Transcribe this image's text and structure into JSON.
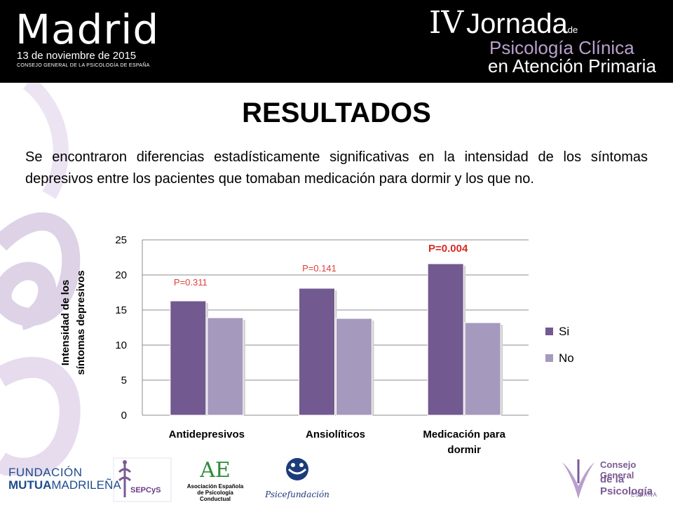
{
  "header": {
    "event_city": "Madrid",
    "event_date": "13 de noviembre de 2015",
    "event_org": "CONSEJO GENERAL DE LA PSICOLOGÍA DE ESPAÑA",
    "jornada_number": "IV",
    "jornada_word": "Jornada",
    "jornada_de": "de",
    "jornada_line2": "Psicología Clínica",
    "jornada_line3": "en Atención Primaria"
  },
  "section_title": "RESULTADOS",
  "summary": "Se encontraron diferencias estadísticamente significativas en la intensidad de los síntomas depresivos entre los pacientes que tomaban medicación para dormir y  los que no.",
  "chart_data": {
    "type": "bar",
    "categories": [
      "Antidepresivos",
      "Ansiolíticos",
      "Medicación para dormir"
    ],
    "category_lines": [
      [
        "Antidepresivos"
      ],
      [
        "Ansiolíticos"
      ],
      [
        "Medicación para",
        "dormir"
      ]
    ],
    "series": [
      {
        "name": "Si",
        "values": [
          16.3,
          18.1,
          21.6
        ],
        "color": "#725990"
      },
      {
        "name": "No",
        "values": [
          13.9,
          13.8,
          13.2
        ],
        "color": "#a699be"
      }
    ],
    "annotations": [
      "P=0.311",
      "P=0.141",
      "P=0.004"
    ],
    "ylabel_lines": [
      "Intensidad de los",
      "síntomas depresivos"
    ],
    "ylim": [
      0,
      25
    ],
    "yticks": [
      0,
      5,
      10,
      15,
      20,
      25
    ],
    "grid": true,
    "legend": "right"
  },
  "footer": {
    "fundacion_line1": "FUNDACIÓN",
    "fundacion_line2_bold": "MUTUA",
    "fundacion_line2_rest": "MADRILEÑA",
    "sepcys": "SEPCyS",
    "aepc_mark": "AE",
    "aepc_line1": "Asociación Española",
    "aepc_line2": "de Psicología Conductual",
    "psicefundacion": "Psicefundación",
    "cgp_line1": "Consejo General",
    "cgp_line2": "de la Psicología",
    "cgp_line3": "ESPAÑA"
  },
  "colors": {
    "header_bg": "#000000",
    "accent_purple": "#b9a0cc",
    "series_si": "#725990",
    "series_no": "#a699be",
    "p_value_red": "#d72b24"
  }
}
